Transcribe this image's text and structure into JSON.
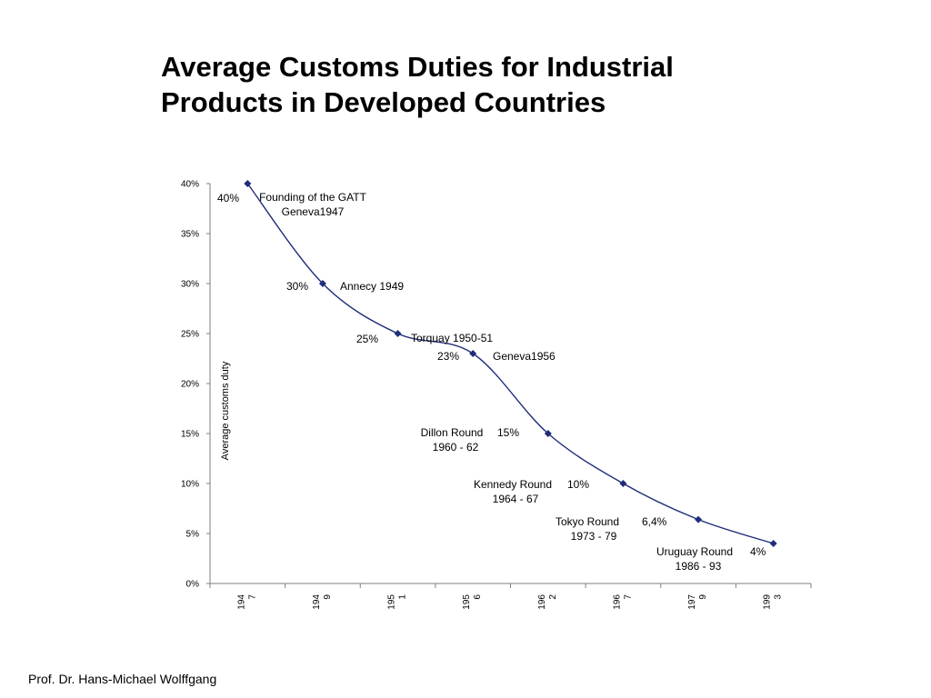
{
  "slide": {
    "title_line1": "Average Customs Duties for Industrial",
    "title_line2": "Products in Developed Countries",
    "footer": "Prof. Dr. Hans-Michael Wolffgang"
  },
  "chart_data": {
    "type": "line",
    "title": "",
    "xlabel": "",
    "ylabel": "Average customs duty",
    "ylim": [
      0,
      40
    ],
    "yticks": [
      "0%",
      "5%",
      "10%",
      "15%",
      "20%",
      "25%",
      "30%",
      "35%",
      "40%"
    ],
    "categories": [
      [
        "194",
        "7"
      ],
      [
        "194",
        "9"
      ],
      [
        "195",
        "1"
      ],
      [
        "195",
        "6"
      ],
      [
        "196",
        "2"
      ],
      [
        "196",
        "7"
      ],
      [
        "197",
        "9"
      ],
      [
        "199",
        "3"
      ]
    ],
    "values": [
      40,
      30,
      25,
      23,
      15,
      10,
      6.4,
      4
    ],
    "series_color": "#1f2d7a",
    "grid": false,
    "legend": "none",
    "annotations": [
      {
        "pct": "40%",
        "lines": [
          "Founding of the GATT",
          "Geneva1947"
        ]
      },
      {
        "pct": "30%",
        "lines": [
          "Annecy 1949"
        ]
      },
      {
        "pct": "25%",
        "lines": [
          "Torquay  1950-51"
        ]
      },
      {
        "pct": "23%",
        "lines": [
          "Geneva1956"
        ]
      },
      {
        "pct": "15%",
        "lines": [
          "Dillon Round",
          "1960 - 62"
        ]
      },
      {
        "pct": "10%",
        "lines": [
          "Kennedy Round",
          "1964 - 67"
        ]
      },
      {
        "pct": "6,4%",
        "lines": [
          "Tokyo Round",
          "1973 - 79"
        ]
      },
      {
        "pct": "4%",
        "lines": [
          "Uruguay Round",
          "1986 - 93"
        ]
      }
    ]
  }
}
